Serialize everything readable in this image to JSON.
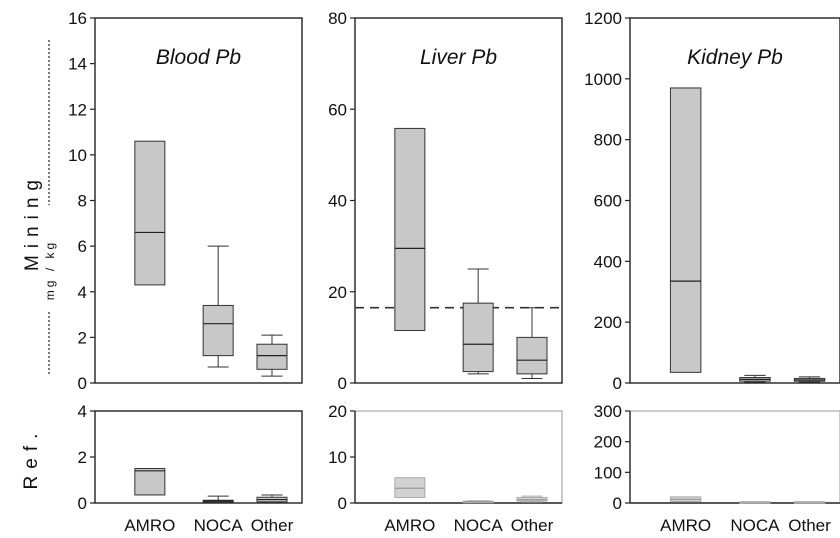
{
  "labels": {
    "row_mining": "Mining",
    "row_ref": "Ref.",
    "unit": "mg / kg"
  },
  "colors": {
    "box_fill": "#c8c8c8",
    "ref_light_fill": "#d2d2d2",
    "axis": "#222222",
    "dashed_line": "#333333"
  },
  "chart_data": [
    {
      "type": "box",
      "title": "Blood Pb",
      "row": "Mining",
      "categories": [
        "AMRO",
        "NOCA",
        "Other"
      ],
      "ylim": [
        0,
        16
      ],
      "yticks": [
        0,
        2,
        4,
        6,
        8,
        10,
        12,
        14,
        16
      ],
      "boxes": [
        {
          "category": "AMRO",
          "whisker_low": null,
          "q1": 4.3,
          "median": 6.6,
          "q3": 10.6,
          "whisker_high": null
        },
        {
          "category": "NOCA",
          "whisker_low": 0.7,
          "q1": 1.2,
          "median": 2.6,
          "q3": 3.4,
          "whisker_high": 6.0
        },
        {
          "category": "Other",
          "whisker_low": 0.3,
          "q1": 0.6,
          "median": 1.2,
          "q3": 1.7,
          "whisker_high": 2.1
        }
      ]
    },
    {
      "type": "box",
      "title": "Liver Pb",
      "row": "Mining",
      "categories": [
        "AMRO",
        "NOCA",
        "Other"
      ],
      "ylim": [
        0,
        80
      ],
      "yticks": [
        0,
        20,
        40,
        60,
        80
      ],
      "reference_line": 16.5,
      "boxes": [
        {
          "category": "AMRO",
          "whisker_low": null,
          "q1": 11.5,
          "median": 29.5,
          "q3": 55.8,
          "whisker_high": null
        },
        {
          "category": "NOCA",
          "whisker_low": 2.0,
          "q1": 2.5,
          "median": 8.5,
          "q3": 17.5,
          "whisker_high": 25.0
        },
        {
          "category": "Other",
          "whisker_low": 1.0,
          "q1": 2.0,
          "median": 5.0,
          "q3": 10.0,
          "whisker_high": 16.5
        }
      ]
    },
    {
      "type": "box",
      "title": "Kidney Pb",
      "row": "Mining",
      "categories": [
        "AMRO",
        "NOCA",
        "Other"
      ],
      "ylim": [
        0,
        1200
      ],
      "yticks": [
        0,
        200,
        400,
        600,
        800,
        1000,
        1200
      ],
      "boxes": [
        {
          "category": "AMRO",
          "whisker_low": null,
          "q1": 35,
          "median": 335,
          "q3": 970,
          "whisker_high": null
        },
        {
          "category": "NOCA",
          "whisker_low": 3,
          "q1": 6,
          "median": 12,
          "q3": 18,
          "whisker_high": 25
        },
        {
          "category": "Other",
          "whisker_low": 3,
          "q1": 6,
          "median": 10,
          "q3": 15,
          "whisker_high": 20
        }
      ]
    },
    {
      "type": "box",
      "title": "",
      "row": "Ref.",
      "categories": [
        "AMRO",
        "NOCA",
        "Other"
      ],
      "ylim": [
        0,
        4
      ],
      "yticks": [
        0,
        2,
        4
      ],
      "boxes": [
        {
          "category": "AMRO",
          "whisker_low": null,
          "q1": 0.35,
          "median": 1.4,
          "q3": 1.5,
          "whisker_high": null
        },
        {
          "category": "NOCA",
          "whisker_low": 0.02,
          "q1": 0.04,
          "median": 0.08,
          "q3": 0.12,
          "whisker_high": 0.3
        },
        {
          "category": "Other",
          "whisker_low": 0.02,
          "q1": 0.05,
          "median": 0.15,
          "q3": 0.25,
          "whisker_high": 0.35
        }
      ]
    },
    {
      "type": "box",
      "title": "",
      "row": "Ref.",
      "categories": [
        "AMRO",
        "NOCA",
        "Other"
      ],
      "ylim": [
        0,
        20
      ],
      "yticks": [
        0,
        10,
        20
      ],
      "light": true,
      "boxes": [
        {
          "category": "AMRO",
          "whisker_low": null,
          "q1": 1.2,
          "median": 3.2,
          "q3": 5.5,
          "whisker_high": null
        },
        {
          "category": "NOCA",
          "whisker_low": 0.1,
          "q1": 0.2,
          "median": 0.3,
          "q3": 0.4,
          "whisker_high": 0.5
        },
        {
          "category": "Other",
          "whisker_low": 0.2,
          "q1": 0.4,
          "median": 0.7,
          "q3": 1.2,
          "whisker_high": 1.5
        }
      ]
    },
    {
      "type": "box",
      "title": "",
      "row": "Ref.",
      "categories": [
        "AMRO",
        "NOCA",
        "Other"
      ],
      "ylim": [
        0,
        300
      ],
      "yticks": [
        0,
        100,
        200,
        300
      ],
      "light": true,
      "boxes": [
        {
          "category": "AMRO",
          "whisker_low": null,
          "q1": 5,
          "median": 12,
          "q3": 20,
          "whisker_high": null
        },
        {
          "category": "NOCA",
          "whisker_low": null,
          "q1": 2,
          "median": 3,
          "q3": 4,
          "whisker_high": null
        },
        {
          "category": "Other",
          "whisker_low": null,
          "q1": 2,
          "median": 3,
          "q3": 4,
          "whisker_high": null
        }
      ]
    }
  ]
}
